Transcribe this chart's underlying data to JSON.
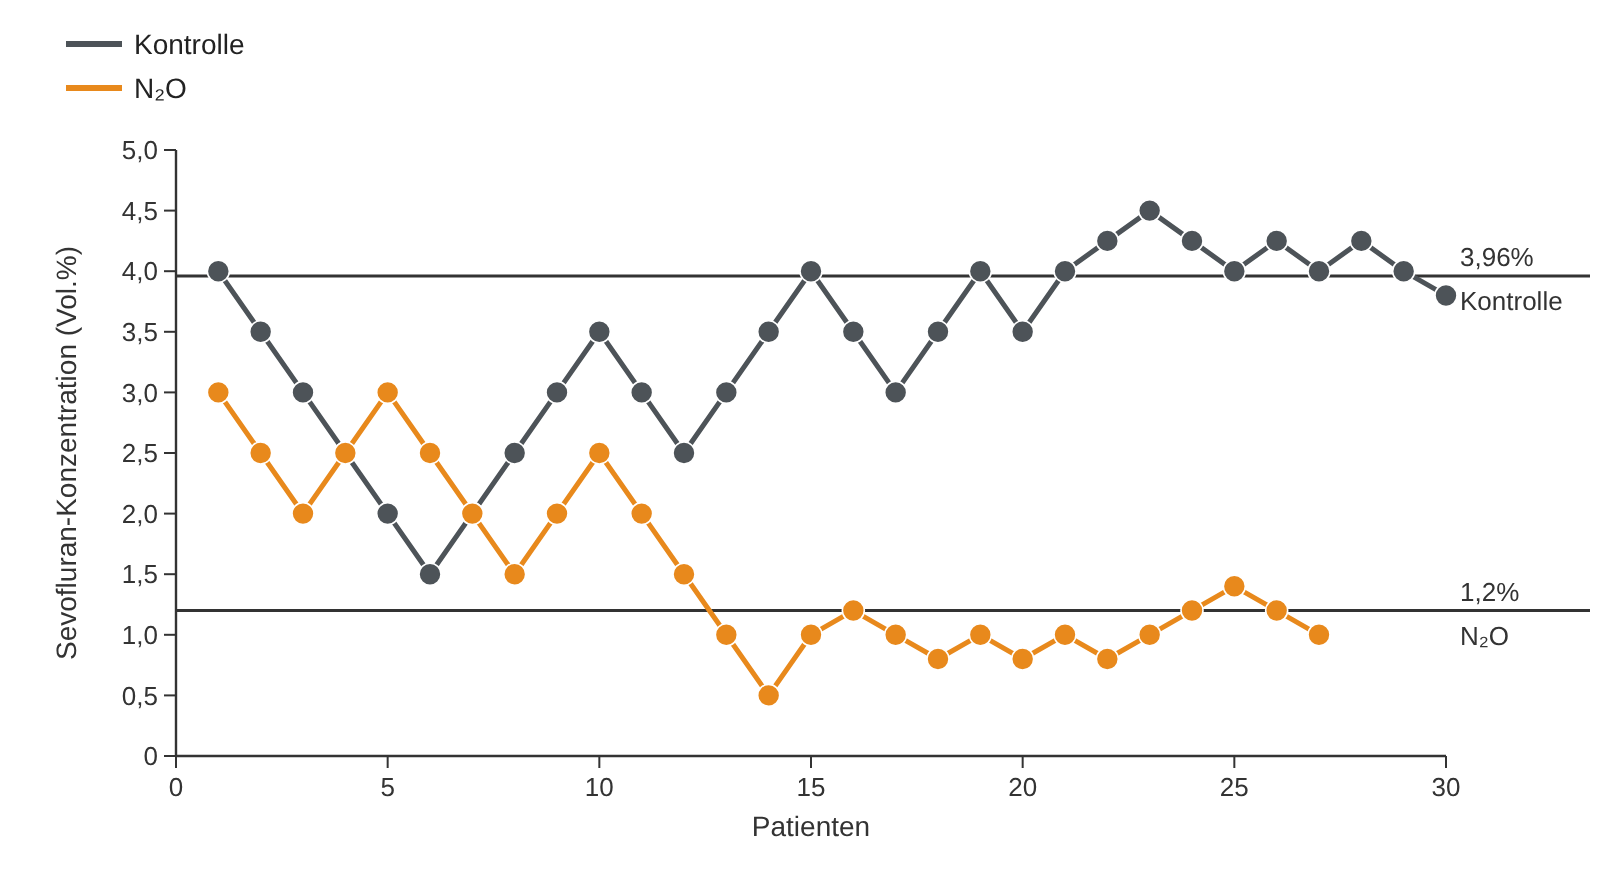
{
  "chart_data": {
    "type": "line",
    "xlabel": "Patienten",
    "ylabel": "Sevofluran-Konzentration (Vol.%)",
    "xlim": [
      0,
      30
    ],
    "xticks": [
      0,
      5,
      10,
      15,
      20,
      25,
      30
    ],
    "ylim": [
      0,
      5
    ],
    "yticks": [
      {
        "value": 0,
        "label": "0"
      },
      {
        "value": 0.5,
        "label": "0,5"
      },
      {
        "value": 1,
        "label": "1,0"
      },
      {
        "value": 1.5,
        "label": "1,5"
      },
      {
        "value": 2,
        "label": "2,0"
      },
      {
        "value": 2.5,
        "label": "2,5"
      },
      {
        "value": 3,
        "label": "3,0"
      },
      {
        "value": 3.5,
        "label": "3,5"
      },
      {
        "value": 4,
        "label": "4,0"
      },
      {
        "value": 4.5,
        "label": "4,5"
      },
      {
        "value": 5,
        "label": "5,0"
      }
    ],
    "grid": false,
    "legend": "top left",
    "marker": "circle",
    "line_style": "solid",
    "series": [
      {
        "name": "Kontrolle",
        "color": "#4d5358",
        "x": [
          1,
          2,
          3,
          4,
          5,
          6,
          7,
          8,
          9,
          10,
          11,
          12,
          13,
          14,
          15,
          16,
          17,
          18,
          19,
          20,
          21,
          22,
          23,
          24,
          25,
          26,
          27,
          28,
          29,
          30
        ],
        "values": [
          4,
          3.5,
          3,
          2.5,
          2,
          1.5,
          2,
          2.5,
          3,
          3.5,
          3,
          2.5,
          3,
          3.5,
          4,
          3.5,
          3,
          3.5,
          4,
          3.5,
          4,
          4.25,
          4.5,
          4.25,
          4,
          4.25,
          4,
          4.25,
          4,
          3.8
        ]
      },
      {
        "name": "N₂O",
        "color": "#e8891c",
        "x": [
          1,
          2,
          3,
          4,
          5,
          6,
          7,
          8,
          9,
          10,
          11,
          12,
          13,
          14,
          15,
          16,
          17,
          18,
          19,
          20,
          21,
          22,
          23,
          24,
          25,
          26,
          27
        ],
        "values": [
          3,
          2.5,
          2,
          2.5,
          3,
          2.5,
          2,
          1.5,
          2,
          2.5,
          2,
          1.5,
          1,
          0.5,
          1,
          1.2,
          1,
          0.8,
          1,
          0.8,
          1,
          0.8,
          1,
          1.2,
          1.4,
          1.2,
          1
        ]
      }
    ],
    "ref_lines": [
      {
        "axis": "y",
        "value": 3.96,
        "label": "3,96%\nKontrolle",
        "color": "#333333"
      },
      {
        "axis": "y",
        "value": 1.2,
        "label": "1,2%\nN₂O",
        "color": "#333333"
      }
    ]
  }
}
